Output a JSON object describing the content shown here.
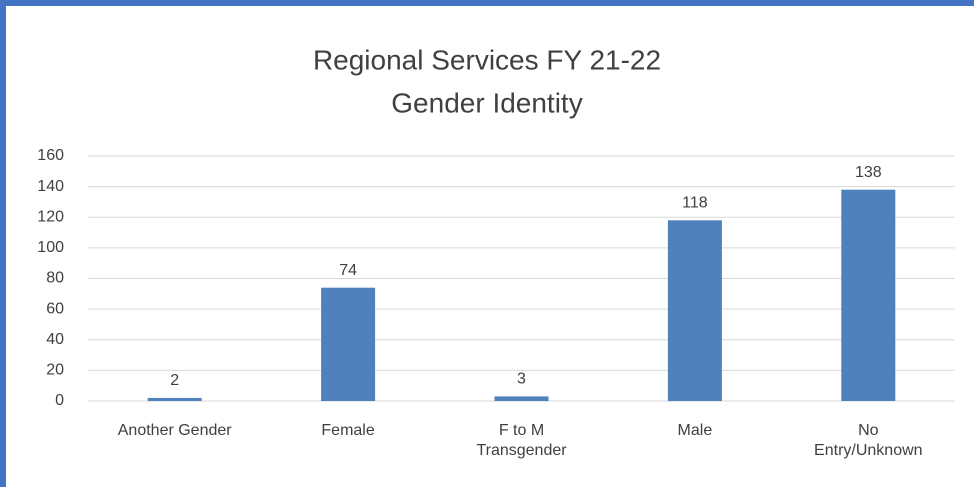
{
  "chart_data": {
    "type": "bar",
    "title": "Regional Services FY 21-22",
    "subtitle": "Gender Identity",
    "categories": [
      "Another Gender",
      "Female",
      "F to M Transgender",
      "Male",
      "No Entry/Unknown"
    ],
    "values": [
      2,
      74,
      3,
      118,
      138
    ],
    "color": "#4f81bd",
    "ylim": [
      0,
      160
    ],
    "yticks": [
      0,
      20,
      40,
      60,
      80,
      100,
      120,
      140,
      160
    ],
    "grid": true
  }
}
